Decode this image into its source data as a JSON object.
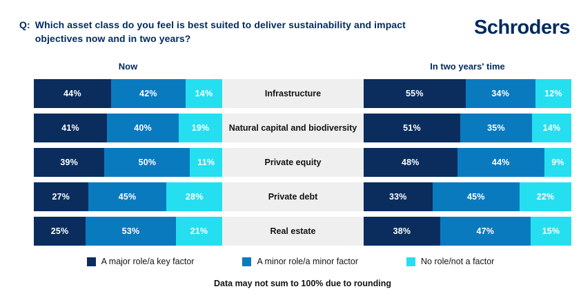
{
  "header": {
    "question_prefix": "Q:",
    "question": "Which asset class do you feel is best suited to deliver sustainability and impact objectives now and in two years?",
    "logo": "Schroders"
  },
  "chart_data": {
    "type": "bar",
    "orientation": "horizontal",
    "stacked": true,
    "unit": "%",
    "title": "Which asset class do you feel is best suited to deliver sustainability and impact objectives now and in two years?",
    "legend_position": "bottom",
    "categories": [
      "Infrastructure",
      "Natural capital and biodiversity",
      "Private equity",
      "Private debt",
      "Real estate"
    ],
    "panels": [
      {
        "title": "Now",
        "series": [
          {
            "name": "A major role/a key factor",
            "color": "#0A2D5E",
            "values": [
              44,
              41,
              39,
              27,
              25
            ]
          },
          {
            "name": "A minor role/a minor factor",
            "color": "#0A7ABF",
            "values": [
              42,
              40,
              50,
              45,
              53
            ]
          },
          {
            "name": "No role/not a factor",
            "color": "#25DFF0",
            "values": [
              14,
              19,
              11,
              28,
              21
            ]
          }
        ]
      },
      {
        "title": "In two years' time",
        "series": [
          {
            "name": "A major role/a key factor",
            "color": "#0A2D5E",
            "values": [
              55,
              51,
              48,
              33,
              38
            ]
          },
          {
            "name": "A minor role/a minor factor",
            "color": "#0A7ABF",
            "values": [
              34,
              35,
              44,
              45,
              47
            ]
          },
          {
            "name": "No role/not a factor",
            "color": "#25DFF0",
            "values": [
              12,
              14,
              9,
              22,
              15
            ]
          }
        ]
      }
    ]
  },
  "legend": [
    {
      "label": "A major role/a key factor",
      "color": "#0A2D5E"
    },
    {
      "label": "A minor role/a minor factor",
      "color": "#0A7ABF"
    },
    {
      "label": "No role/not a factor",
      "color": "#25DFF0"
    }
  ],
  "footnote": "Data may not sum to 100% due to rounding",
  "colors": {
    "brand_navy": "#002A5E",
    "major": "#0A2D5E",
    "minor": "#0A7ABF",
    "none": "#25DFF0",
    "row_background": "#EFEFEF",
    "page_background": "#FFFFFF"
  }
}
